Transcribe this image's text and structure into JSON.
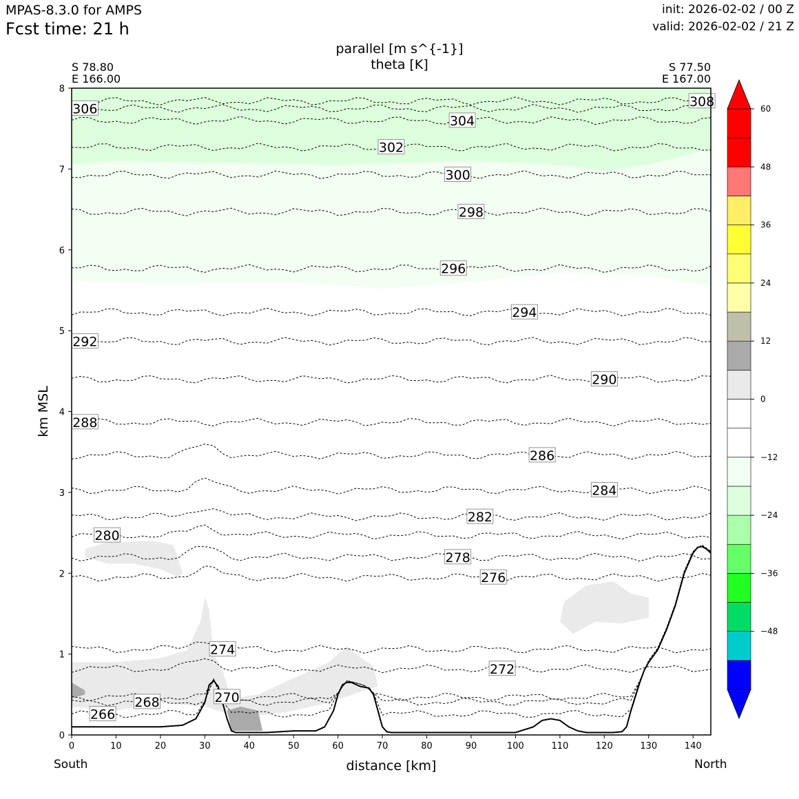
{
  "header": {
    "model": "MPAS-8.3.0 for AMPS",
    "fcst_time": "Fcst time:   21 h",
    "init": "init: 2026-02-02 / 00 Z",
    "valid": "valid: 2026-02-02 / 21 Z"
  },
  "endpoints": {
    "left_lat": "S 78.80",
    "left_lon": "E 166.00",
    "right_lat": "S 77.50",
    "right_lon": "E 167.00",
    "left_label": "South",
    "right_label": "North"
  },
  "chart_data": {
    "type": "contour-cross-section",
    "title": "parallel [m s^{-1}]",
    "subtitle": "theta [K]",
    "xlabel": "distance [km]",
    "ylabel": "km MSL",
    "xlim": [
      0,
      144
    ],
    "ylim": [
      0,
      8
    ],
    "xticks": [
      0,
      10,
      20,
      30,
      40,
      50,
      60,
      70,
      80,
      90,
      100,
      110,
      120,
      130,
      140
    ],
    "yticks": [
      0,
      1,
      2,
      3,
      4,
      5,
      6,
      7,
      8
    ],
    "theta_contours": [
      {
        "value": 266,
        "label_at": [
          7,
          0.26
        ]
      },
      {
        "value": 268,
        "label_at": [
          17,
          0.41
        ]
      },
      {
        "value": 270,
        "label_at": [
          35,
          0.47
        ]
      },
      {
        "value": 272,
        "label_at": [
          97,
          0.82
        ]
      },
      {
        "value": 274,
        "label_at": [
          34,
          1.06
        ]
      },
      {
        "value": 276,
        "label_at": [
          95,
          1.95
        ]
      },
      {
        "value": 278,
        "label_at": [
          87,
          2.2
        ]
      },
      {
        "value": 280,
        "label_at": [
          8,
          2.47
        ]
      },
      {
        "value": 282,
        "label_at": [
          92,
          2.7
        ]
      },
      {
        "value": 284,
        "label_at": [
          120,
          3.03
        ]
      },
      {
        "value": 286,
        "label_at": [
          106,
          3.46
        ]
      },
      {
        "value": 288,
        "label_at": [
          3,
          3.87
        ]
      },
      {
        "value": 290,
        "label_at": [
          120,
          4.4
        ]
      },
      {
        "value": 292,
        "label_at": [
          3,
          4.87
        ]
      },
      {
        "value": 294,
        "label_at": [
          102,
          5.23
        ]
      },
      {
        "value": 296,
        "label_at": [
          86,
          5.77
        ]
      },
      {
        "value": 298,
        "label_at": [
          90,
          6.47
        ]
      },
      {
        "value": 300,
        "label_at": [
          87,
          6.93
        ]
      },
      {
        "value": 302,
        "label_at": [
          72,
          7.27
        ]
      },
      {
        "value": 304,
        "label_at": [
          88,
          7.6
        ]
      },
      {
        "value": 306,
        "label_at": [
          3,
          7.75
        ]
      },
      {
        "value": 308,
        "label_at": [
          142,
          7.84
        ]
      }
    ],
    "terrain": {
      "x": [
        0,
        10,
        20,
        25,
        28,
        30,
        31,
        32,
        33,
        34,
        35,
        36,
        37,
        38,
        40,
        44,
        50,
        55,
        57,
        59,
        60,
        61,
        62,
        63,
        65,
        67,
        68,
        69,
        70,
        71,
        72,
        80,
        90,
        100,
        104,
        106,
        108,
        110,
        112,
        114,
        116,
        118,
        120,
        122,
        124,
        125,
        126,
        128,
        129,
        130,
        132,
        134,
        136,
        138,
        140,
        141,
        142,
        143,
        144
      ],
      "y": [
        0.1,
        0.1,
        0.1,
        0.12,
        0.2,
        0.4,
        0.62,
        0.67,
        0.6,
        0.4,
        0.2,
        0.05,
        0.03,
        0.03,
        0.03,
        0.03,
        0.05,
        0.05,
        0.1,
        0.3,
        0.5,
        0.62,
        0.65,
        0.65,
        0.6,
        0.58,
        0.5,
        0.3,
        0.1,
        0.04,
        0.03,
        0.03,
        0.03,
        0.03,
        0.1,
        0.18,
        0.2,
        0.18,
        0.1,
        0.05,
        0.03,
        0.03,
        0.03,
        0.03,
        0.04,
        0.1,
        0.3,
        0.65,
        0.8,
        0.9,
        1.05,
        1.3,
        1.6,
        2.0,
        2.25,
        2.32,
        2.33,
        2.3,
        2.25
      ]
    },
    "colorbar": {
      "levels": [
        -60,
        -54,
        -48,
        -42,
        -36,
        -30,
        -24,
        -18,
        -12,
        -6,
        0,
        6,
        12,
        18,
        24,
        30,
        36,
        42,
        48,
        54,
        60
      ],
      "tick_labels": [
        "60",
        "48",
        "36",
        "24",
        "12",
        "0",
        "−12",
        "−24",
        "−36",
        "−48"
      ],
      "tick_values": [
        60,
        48,
        36,
        24,
        12,
        0,
        -12,
        -24,
        -36,
        -48
      ],
      "colors": [
        "#0000ff",
        "#00cccc",
        "#00dd66",
        "#22ff22",
        "#66ff66",
        "#aaffaa",
        "#ddffdd",
        "#f2fff2",
        "#ffffff",
        "#ffffff",
        "#eaeaea",
        "#aaaaaa",
        "#c0c0aa",
        "#ffffaa",
        "#ffff77",
        "#ffff33",
        "#ffee66",
        "#ff7777",
        "#ff0000"
      ],
      "under_color": "#0000ff",
      "over_color": "#ff0000"
    }
  }
}
